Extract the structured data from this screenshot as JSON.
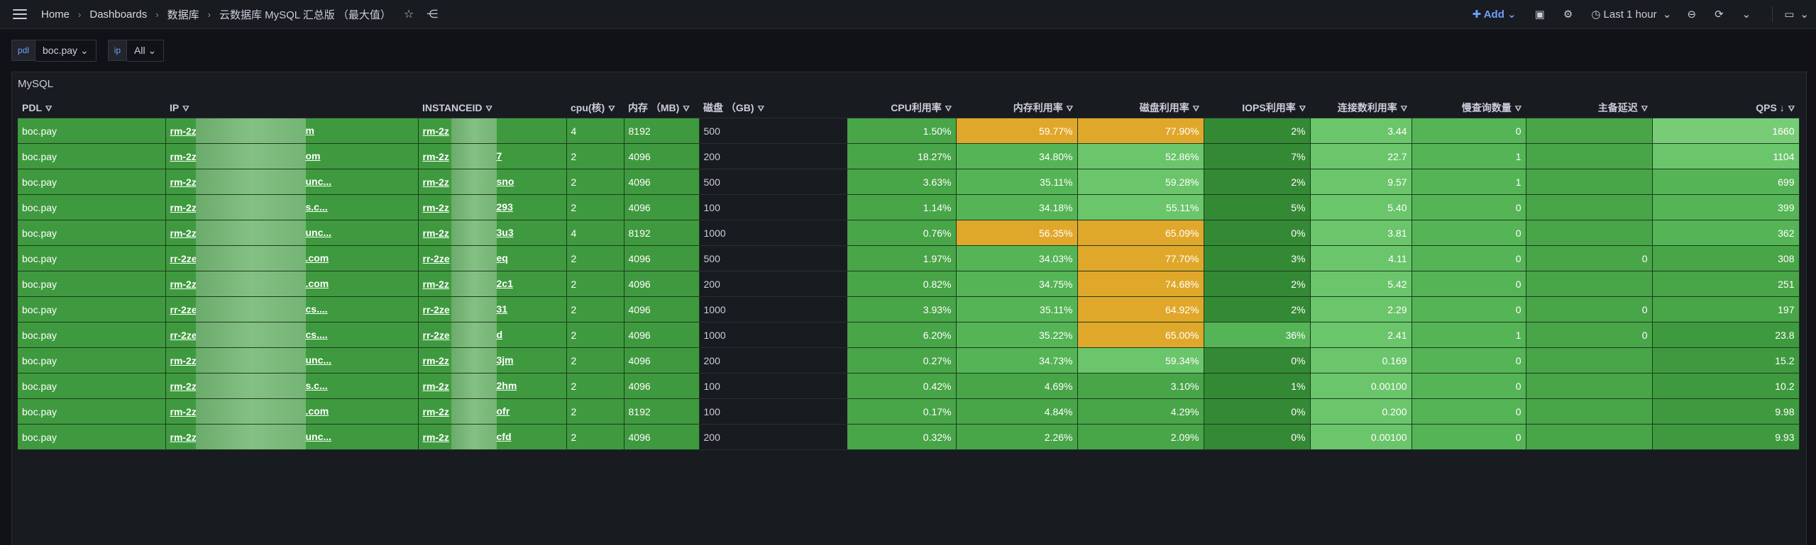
{
  "header": {
    "breadcrumbs": [
      "Home",
      "Dashboards",
      "数据库",
      "云数据库 MySQL 汇总版 （最大值）"
    ],
    "add_label": "Add",
    "time_range": "Last 1 hour"
  },
  "variables": [
    {
      "label": "pdl",
      "value": "boc.pay"
    },
    {
      "label": "ip",
      "value": "All"
    }
  ],
  "panel": {
    "title": "MySQL",
    "columns": [
      "PDL",
      "IP",
      "INSTANCEID",
      "cpu(核)",
      "内存 （MB)",
      "磁盘 （GB)",
      "CPU利用率",
      "内存利用率",
      "磁盘利用率",
      "IOPS利用率",
      "连接数利用率",
      "慢查询数量",
      "主备延迟",
      "QPS"
    ],
    "rows": [
      {
        "pdl": "boc.pay",
        "ip": "rm-2z",
        "ip_tail": "m",
        "iid": "rm-2z",
        "iid_tail": "",
        "cpu": "4",
        "mem": "8192",
        "disk": "500",
        "cpu_u": "1.50%",
        "mem_u": "59.77%",
        "disk_u": "77.90%",
        "iops": "2%",
        "conn": "3.44",
        "slow": "0",
        "delay": "",
        "qps": "1660"
      },
      {
        "pdl": "boc.pay",
        "ip": "rm-2z",
        "ip_tail": "om",
        "iid": "rm-2z",
        "iid_tail": "7",
        "cpu": "2",
        "mem": "4096",
        "disk": "200",
        "cpu_u": "18.27%",
        "mem_u": "34.80%",
        "disk_u": "52.86%",
        "iops": "7%",
        "conn": "22.7",
        "slow": "1",
        "delay": "",
        "qps": "1104"
      },
      {
        "pdl": "boc.pay",
        "ip": "rm-2z",
        "ip_tail": "unc...",
        "iid": "rm-2z",
        "iid_tail": "sno",
        "cpu": "2",
        "mem": "4096",
        "disk": "500",
        "cpu_u": "3.63%",
        "mem_u": "35.11%",
        "disk_u": "59.28%",
        "iops": "2%",
        "conn": "9.57",
        "slow": "1",
        "delay": "",
        "qps": "699"
      },
      {
        "pdl": "boc.pay",
        "ip": "rm-2z",
        "ip_tail": "s.c...",
        "iid": "rm-2z",
        "iid_tail": "293",
        "cpu": "2",
        "mem": "4096",
        "disk": "100",
        "cpu_u": "1.14%",
        "mem_u": "34.18%",
        "disk_u": "55.11%",
        "iops": "5%",
        "conn": "5.40",
        "slow": "0",
        "delay": "",
        "qps": "399"
      },
      {
        "pdl": "boc.pay",
        "ip": "rm-2z",
        "ip_tail": "unc...",
        "iid": "rm-2z",
        "iid_tail": "3u3",
        "cpu": "4",
        "mem": "8192",
        "disk": "1000",
        "cpu_u": "0.76%",
        "mem_u": "56.35%",
        "disk_u": "65.09%",
        "iops": "0%",
        "conn": "3.81",
        "slow": "0",
        "delay": "",
        "qps": "362"
      },
      {
        "pdl": "boc.pay",
        "ip": "rr-2ze",
        "ip_tail": ".com",
        "iid": "rr-2ze",
        "iid_tail": "eq",
        "cpu": "2",
        "mem": "4096",
        "disk": "500",
        "cpu_u": "1.97%",
        "mem_u": "34.03%",
        "disk_u": "77.70%",
        "iops": "3%",
        "conn": "4.11",
        "slow": "0",
        "delay": "0",
        "qps": "308"
      },
      {
        "pdl": "boc.pay",
        "ip": "rm-2z",
        "ip_tail": ".com",
        "iid": "rm-2z",
        "iid_tail": "2c1",
        "cpu": "2",
        "mem": "4096",
        "disk": "200",
        "cpu_u": "0.82%",
        "mem_u": "34.75%",
        "disk_u": "74.68%",
        "iops": "2%",
        "conn": "5.42",
        "slow": "0",
        "delay": "",
        "qps": "251"
      },
      {
        "pdl": "boc.pay",
        "ip": "rr-2ze",
        "ip_tail": "cs....",
        "iid": "rr-2ze",
        "iid_tail": "31",
        "cpu": "2",
        "mem": "4096",
        "disk": "1000",
        "cpu_u": "3.93%",
        "mem_u": "35.11%",
        "disk_u": "64.92%",
        "iops": "2%",
        "conn": "2.29",
        "slow": "0",
        "delay": "0",
        "qps": "197"
      },
      {
        "pdl": "boc.pay",
        "ip": "rr-2ze",
        "ip_tail": "cs....",
        "iid": "rr-2ze",
        "iid_tail": "d",
        "cpu": "2",
        "mem": "4096",
        "disk": "1000",
        "cpu_u": "6.20%",
        "mem_u": "35.22%",
        "disk_u": "65.00%",
        "iops": "36%",
        "conn": "2.41",
        "slow": "1",
        "delay": "0",
        "qps": "23.8"
      },
      {
        "pdl": "boc.pay",
        "ip": "rm-2z",
        "ip_tail": "unc...",
        "iid": "rm-2z",
        "iid_tail": "3jm",
        "cpu": "2",
        "mem": "4096",
        "disk": "200",
        "cpu_u": "0.27%",
        "mem_u": "34.73%",
        "disk_u": "59.34%",
        "iops": "0%",
        "conn": "0.169",
        "slow": "0",
        "delay": "",
        "qps": "15.2"
      },
      {
        "pdl": "boc.pay",
        "ip": "rm-2z",
        "ip_tail": "s.c...",
        "iid": "rm-2z",
        "iid_tail": "2hm",
        "cpu": "2",
        "mem": "4096",
        "disk": "100",
        "cpu_u": "0.42%",
        "mem_u": "4.69%",
        "disk_u": "3.10%",
        "iops": "1%",
        "conn": "0.00100",
        "slow": "0",
        "delay": "",
        "qps": "10.2"
      },
      {
        "pdl": "boc.pay",
        "ip": "rm-2z",
        "ip_tail": ".com",
        "iid": "rm-2z",
        "iid_tail": "ofr",
        "cpu": "2",
        "mem": "8192",
        "disk": "100",
        "cpu_u": "0.17%",
        "mem_u": "4.84%",
        "disk_u": "4.29%",
        "iops": "0%",
        "conn": "0.200",
        "slow": "0",
        "delay": "",
        "qps": "9.98"
      },
      {
        "pdl": "boc.pay",
        "ip": "rm-2z",
        "ip_tail": "unc...",
        "iid": "rm-2z",
        "iid_tail": "cfd",
        "cpu": "2",
        "mem": "4096",
        "disk": "200",
        "cpu_u": "0.32%",
        "mem_u": "2.26%",
        "disk_u": "2.09%",
        "iops": "0%",
        "conn": "0.00100",
        "slow": "0",
        "delay": "",
        "qps": "9.93"
      }
    ]
  },
  "colors": {
    "amber": "#e0a82a",
    "green": "#48a548",
    "accent": "#6e9fff"
  }
}
